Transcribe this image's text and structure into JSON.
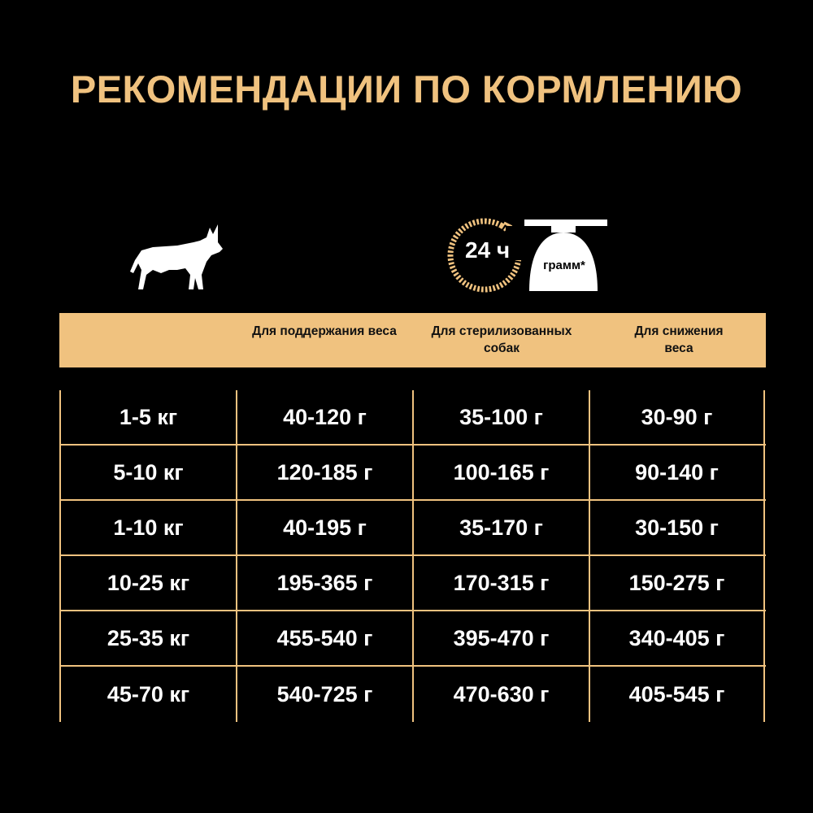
{
  "title": "РЕКОМЕНДАЦИИ ПО КОРМЛЕНИЮ",
  "colors": {
    "accent": "#f0c27f",
    "background": "#000000"
  },
  "icons": {
    "dog": "dog-silhouette-icon",
    "clock": "24h-clock-icon",
    "bowl": "food-bowl-icon"
  },
  "clock_label": "24 ч",
  "bowl_label": "грамм*",
  "headers": [
    "",
    "Для поддержания веса",
    "Для стерилизованных собак",
    "Для снижения веса"
  ],
  "rows": [
    [
      "1-5 кг",
      "40-120 г",
      "35-100 г",
      "30-90 г"
    ],
    [
      "5-10 кг",
      "120-185 г",
      "100-165 г",
      "90-140 г"
    ],
    [
      "1-10 кг",
      "40-195 г",
      "35-170 г",
      "30-150 г"
    ],
    [
      "10-25 кг",
      "195-365 г",
      "170-315 г",
      "150-275 г"
    ],
    [
      "25-35 кг",
      "455-540 г",
      "395-470 г",
      "340-405 г"
    ],
    [
      "45-70 кг",
      "540-725 г",
      "470-630 г",
      "405-545 г"
    ]
  ]
}
